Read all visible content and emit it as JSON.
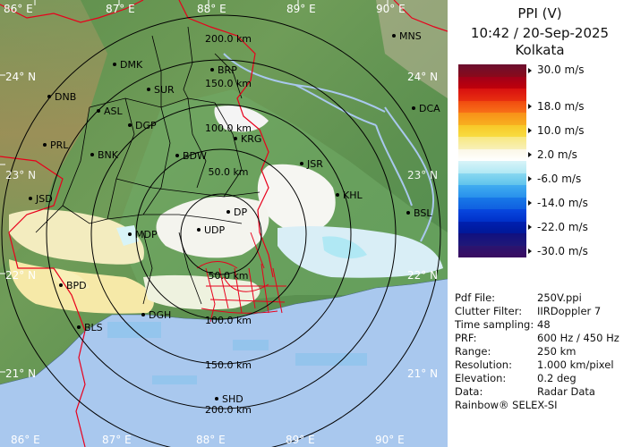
{
  "panel": {
    "title": "PPI (V)",
    "datetime": "10:42 / 20-Sep-2025",
    "station": "Kolkata",
    "scale": [
      {
        "label": "30.0 m/s",
        "colors": [
          "#6b0f2f",
          "#8a0a1a"
        ]
      },
      {
        "label": "",
        "colors": [
          "#a0001a",
          "#c0000a"
        ]
      },
      {
        "label": "",
        "colors": [
          "#d81010",
          "#e83010"
        ]
      },
      {
        "label": "18.0 m/s",
        "colors": [
          "#f04b10",
          "#f87018"
        ]
      },
      {
        "label": "",
        "colors": [
          "#f89018",
          "#f8b020"
        ]
      },
      {
        "label": "10.0 m/s",
        "colors": [
          "#f8c828",
          "#f8dc40"
        ]
      },
      {
        "label": "",
        "colors": [
          "#f8e880",
          "#f8f0b8"
        ]
      },
      {
        "label": "2.0 m/s",
        "colors": [
          "#fbf7e6",
          "#ffffff"
        ]
      },
      {
        "label": "",
        "colors": [
          "#d8f4f8",
          "#b0e8f4"
        ]
      },
      {
        "label": "-6.0 m/s",
        "colors": [
          "#88d8f0",
          "#60c4ec"
        ]
      },
      {
        "label": "",
        "colors": [
          "#40acf0",
          "#2890ec"
        ]
      },
      {
        "label": "-14.0 m/s",
        "colors": [
          "#1878e8",
          "#1060e0"
        ]
      },
      {
        "label": "",
        "colors": [
          "#0848e0",
          "#0030c8"
        ]
      },
      {
        "label": "-22.0 m/s",
        "colors": [
          "#0020b0",
          "#001898"
        ]
      },
      {
        "label": "",
        "colors": [
          "#101080",
          "#201878"
        ]
      },
      {
        "label": "-30.0 m/s",
        "colors": [
          "#2a1470",
          "#3a0c60"
        ]
      }
    ],
    "info": [
      {
        "key": "Pdf File:",
        "value": "250V.ppi"
      },
      {
        "key": "Clutter Filter:",
        "value": "IIRDoppler 7"
      },
      {
        "key": "Time sampling:",
        "value": "48"
      },
      {
        "key": "PRF:",
        "value": "600 Hz / 450 Hz"
      },
      {
        "key": "Range:",
        "value": "250 km"
      },
      {
        "key": "Resolution:",
        "value": "1.000 km/pixel"
      },
      {
        "key": "Elevation:",
        "value": "0.2 deg"
      },
      {
        "key": "Data:",
        "value": "Radar Data"
      }
    ],
    "credit": "Rainbow® SELEX-SI"
  },
  "map": {
    "lon_ticks_top": [
      "86° E",
      "87° E",
      "88° E",
      "89° E",
      "90° E"
    ],
    "lon_ticks_bottom": [
      "86° E",
      "87° E",
      "88° E",
      "89° E",
      "90° E"
    ],
    "lat_ticks_left": [
      "24° N",
      "23° N",
      "22° N",
      "21° N"
    ],
    "lat_ticks_right": [
      "24° N",
      "23° N",
      "22° N",
      "21° N"
    ],
    "range_rings_upper": [
      "200.0 km",
      "150.0 km",
      "100.0 km",
      "50.0 km"
    ],
    "range_rings_lower": [
      "50.0 km",
      "100.0 km",
      "150.0 km",
      "200.0 km"
    ],
    "cities": [
      "MNS",
      "DMK",
      "BRP",
      "DNB",
      "SUR",
      "DCA",
      "ASL",
      "DGP",
      "KRG",
      "PRL",
      "BNK",
      "BDW",
      "JSR",
      "KHL",
      "JSD",
      "DP",
      "BSL",
      "MDP",
      "UDP",
      "BPD",
      "BLS",
      "DGH",
      "SHD"
    ],
    "colors": {
      "range_ring": "#000000",
      "border": "#e8001c",
      "district": "#000000",
      "sea": "#a9c8ee"
    }
  }
}
